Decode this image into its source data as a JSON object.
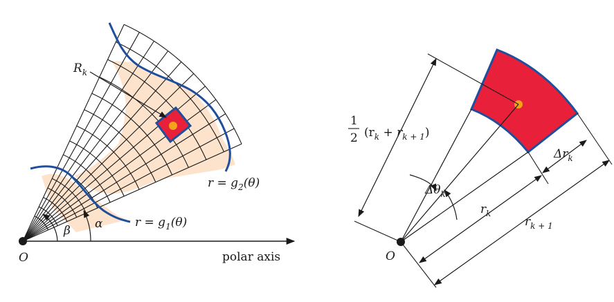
{
  "colors": {
    "shaded_region": "#fde3cc",
    "curve_blue": "#1f4f9c",
    "element_red": "#e8203a",
    "sample_point": "#f4a21a",
    "line": "#1a1a1a"
  },
  "left_panel": {
    "region_label": {
      "main": "R",
      "sub": "k"
    },
    "inner_curve_label": {
      "lhs": "r = g",
      "sub": "1",
      "arg": "(θ)"
    },
    "outer_curve_label": {
      "lhs": "r = g",
      "sub": "2",
      "arg": "(θ)"
    },
    "angle_alpha": "α",
    "angle_beta": "β",
    "origin_label": "O",
    "axis_label": "polar axis"
  },
  "right_panel": {
    "half_num": "1",
    "half_den": "2",
    "half_expr": {
      "a": "(r",
      "a_sub": "k",
      "b": " + r",
      "b_sub": "k + 1",
      "c": ")"
    },
    "delta_theta": {
      "main": "Δθ",
      "sub": "k"
    },
    "r_k": {
      "main": "r",
      "sub": "k"
    },
    "r_k1": {
      "main": "r",
      "sub": "k + 1"
    },
    "delta_r": {
      "main": "Δr",
      "sub": "k"
    },
    "origin_label": "O"
  }
}
